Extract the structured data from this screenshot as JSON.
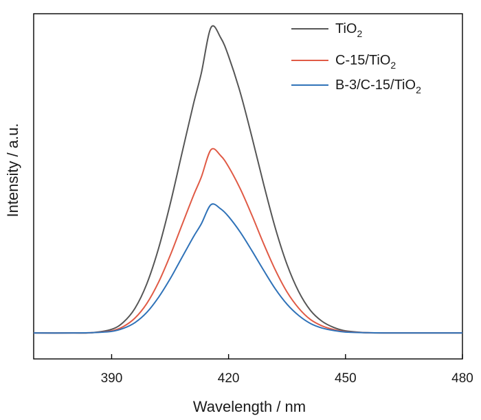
{
  "chart_data": {
    "type": "line",
    "xlabel": "Wavelength / nm",
    "ylabel": "Intensity / a.u.",
    "xlim": [
      370,
      480
    ],
    "ylim": [
      -0.085,
      1.045
    ],
    "x_ticks": [
      390,
      420,
      450,
      480
    ],
    "y_ticks_shown": false,
    "grid": false,
    "legend_position": "top-right",
    "series": [
      {
        "name": "TiO₂",
        "color": "#555555",
        "peak_x": 415.5,
        "peak_y": 1.0,
        "x": [
          370,
          380,
          385,
          390,
          393,
          396,
          399,
          402,
          405,
          408,
          411,
          413,
          415.5,
          418,
          420,
          423,
          426,
          429,
          432,
          435,
          438,
          441,
          444,
          447,
          450,
          455,
          460,
          470,
          480
        ],
        "y": [
          0.0,
          0.0,
          0.001,
          0.012,
          0.035,
          0.081,
          0.16,
          0.275,
          0.421,
          0.586,
          0.75,
          0.85,
          1.0,
          0.966,
          0.906,
          0.787,
          0.641,
          0.487,
          0.343,
          0.224,
          0.135,
          0.074,
          0.038,
          0.018,
          0.007,
          0.001,
          0.0,
          0.0,
          0.0
        ]
      },
      {
        "name": "C-15/TiO₂",
        "color": "#e05a45",
        "peak_x": 415.5,
        "peak_y": 0.6,
        "x": [
          370,
          380,
          385,
          390,
          393,
          396,
          399,
          402,
          405,
          408,
          411,
          413,
          415.5,
          418,
          420,
          423,
          426,
          429,
          432,
          435,
          438,
          441,
          444,
          447,
          450,
          455,
          460,
          470,
          480
        ],
        "y": [
          0.0,
          0.0,
          0.001,
          0.007,
          0.021,
          0.049,
          0.096,
          0.165,
          0.253,
          0.352,
          0.45,
          0.51,
          0.6,
          0.58,
          0.544,
          0.472,
          0.385,
          0.292,
          0.206,
          0.134,
          0.081,
          0.044,
          0.023,
          0.011,
          0.004,
          0.001,
          0.0,
          0.0,
          0.0
        ]
      },
      {
        "name": "B-3/C-15/TiO₂",
        "color": "#2f72b8",
        "peak_x": 415.5,
        "peak_y": 0.42,
        "x": [
          370,
          380,
          385,
          390,
          393,
          396,
          399,
          402,
          405,
          408,
          411,
          413,
          415.5,
          418,
          420,
          423,
          426,
          429,
          432,
          435,
          438,
          441,
          444,
          447,
          450,
          455,
          460,
          470,
          480
        ],
        "y": [
          0.0,
          0.0,
          0.001,
          0.005,
          0.015,
          0.034,
          0.067,
          0.116,
          0.177,
          0.246,
          0.315,
          0.357,
          0.42,
          0.406,
          0.381,
          0.33,
          0.269,
          0.205,
          0.144,
          0.094,
          0.057,
          0.031,
          0.016,
          0.008,
          0.003,
          0.001,
          0.0,
          0.0,
          0.0
        ]
      }
    ],
    "legend": [
      {
        "base": "TiO",
        "sub": "2"
      },
      {
        "base": "C-15/TiO",
        "sub": "2"
      },
      {
        "base": "B-3/C-15/TiO",
        "sub": "2"
      }
    ]
  }
}
